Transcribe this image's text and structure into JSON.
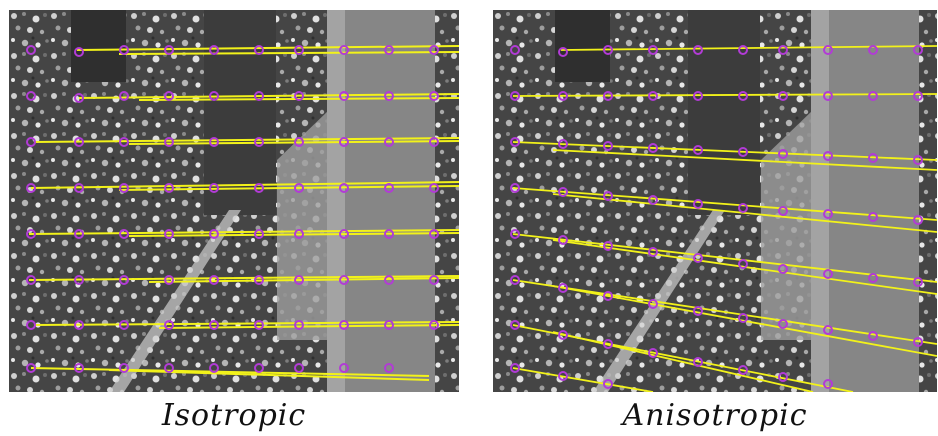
{
  "figure": {
    "captions": {
      "left": "Isotropic",
      "right": "Anisotropic"
    },
    "colors": {
      "flow_line": "#f2f21a",
      "feature_point": "#b23bd6",
      "gravel_dark": "#3a3a3a",
      "gravel_light": "#bdbdbd",
      "pillar": "#8e8e8e"
    }
  }
}
